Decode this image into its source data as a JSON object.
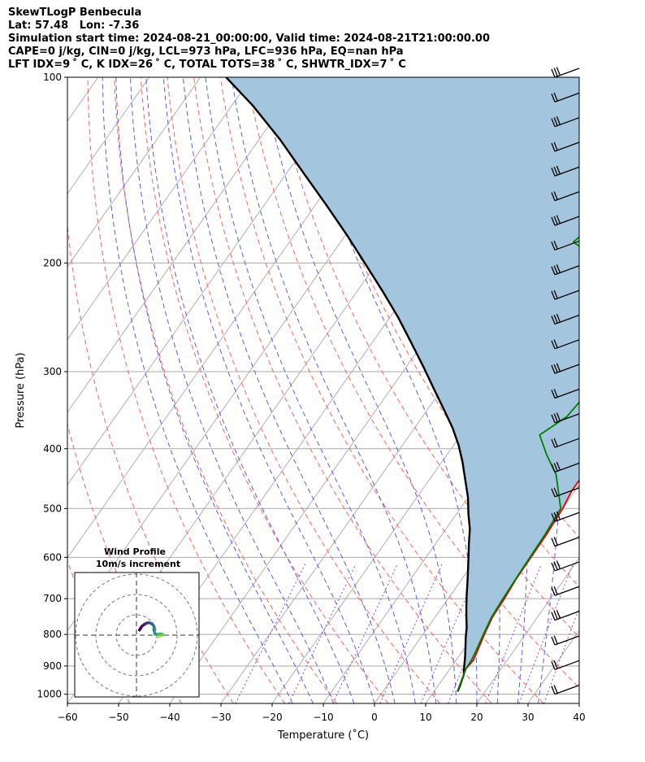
{
  "header": {
    "line1": "SkewTLogP Benbecula",
    "line2": "Lat: 57.48   Lon: -7.36",
    "line3": "Simulation start time: 2024-08-21_00:00:00, Valid time: 2024-08-21T21:00:00.00",
    "line4": "CAPE=0 j/kg, CIN=0 j/kg, LCL=973 hPa, LFC=936 hPa, EQ=nan hPa",
    "line5": "LFT IDX=9 ˚ C, K IDX=26 ˚ C, TOTAL TOTS=38 ˚ C, SHWTR_IDX=7 ˚ C"
  },
  "chart_data": [
    {
      "type": "line",
      "subtype": "skew-t log-p",
      "xlabel": "Temperature (˚C)",
      "ylabel": "Pressure (hPa)",
      "xlim": [
        -60,
        40
      ],
      "ylim": [
        1035,
        100
      ],
      "y_scale": "log",
      "x_ticks": [
        "−60",
        "−50",
        "−40",
        "−30",
        "−20",
        "−10",
        "0",
        "10",
        "20",
        "30",
        "40"
      ],
      "y_ticks": [
        "100",
        "200",
        "300",
        "400",
        "500",
        "600",
        "700",
        "800",
        "900",
        "1000"
      ],
      "grid": true,
      "colors": {
        "temperature": "#e00000",
        "dewpoint": "#008000",
        "parcel": "#000000",
        "shade": "#a3c6de",
        "dry_adiabat": "#ff6060",
        "moist_adiabat": "#5a5aff",
        "mixing_ratio": "#9a40c8",
        "isotherm": "#a8a8a8"
      },
      "series": [
        {
          "points": [
            [
              14.6,
              990
            ],
            [
              14.2,
              970
            ],
            [
              13.5,
              930
            ],
            [
              13.1,
              910
            ],
            [
              13.4,
              880
            ],
            [
              12.9,
              850
            ],
            [
              12.0,
              800
            ],
            [
              11.2,
              750
            ],
            [
              11.0,
              700
            ],
            [
              10.6,
              650
            ],
            [
              10.5,
              600
            ],
            [
              10.4,
              550
            ],
            [
              10.0,
              500
            ],
            [
              9.4,
              470
            ],
            [
              9.3,
              440
            ],
            [
              9.2,
              410
            ],
            [
              8.0,
              380
            ],
            [
              6.5,
              350
            ],
            [
              4.5,
              320
            ],
            [
              3.0,
              300
            ],
            [
              1.5,
              285
            ],
            [
              0.2,
              270
            ],
            [
              -0.5,
              255
            ],
            [
              -1.0,
              240
            ],
            [
              -0.3,
              225
            ],
            [
              0.9,
              210
            ],
            [
              2.2,
              200
            ],
            [
              3.4,
              190
            ],
            [
              4.8,
              180
            ],
            [
              6.5,
              170
            ],
            [
              8.5,
              158
            ],
            [
              10.2,
              148
            ],
            [
              11.8,
              138
            ],
            [
              13.3,
              128
            ],
            [
              14.8,
              119
            ],
            [
              16.0,
              111
            ],
            [
              17.5,
              105
            ],
            [
              18.7,
              100
            ]
          ]
        },
        {
          "points": [
            [
              14.6,
              990
            ],
            [
              14.2,
              970
            ],
            [
              13.5,
              930
            ],
            [
              13.1,
              910
            ],
            [
              13.0,
              880
            ],
            [
              12.6,
              850
            ],
            [
              11.8,
              800
            ],
            [
              11.0,
              750
            ],
            [
              10.7,
              700
            ],
            [
              10.5,
              650
            ],
            [
              10.3,
              600
            ],
            [
              10.1,
              550
            ],
            [
              9.6,
              500
            ],
            [
              4.0,
              440
            ],
            [
              -0.4,
              410
            ],
            [
              -4.6,
              380
            ],
            [
              -1.8,
              355
            ],
            [
              -1.3,
              335
            ],
            [
              -2.5,
              310
            ],
            [
              -4.5,
              290
            ],
            [
              -8.3,
              270
            ],
            [
              -6.3,
              255
            ],
            [
              -6.0,
              235
            ],
            [
              -5.8,
              220
            ],
            [
              -13.6,
              205
            ],
            [
              -18.5,
              195
            ],
            [
              -24.5,
              185
            ],
            [
              -22.5,
              170
            ],
            [
              -15.0,
              150
            ],
            [
              -8.0,
              130
            ],
            [
              -1.5,
              113
            ],
            [
              2.8,
              100
            ]
          ]
        },
        {
          "points": [
            [
              14.6,
              990
            ],
            [
              14.3,
              970
            ],
            [
              13.9,
              950
            ],
            [
              13.5,
              930
            ],
            [
              12.4,
              900
            ],
            [
              11.3,
              870
            ],
            [
              10.1,
              840
            ],
            [
              8.8,
              810
            ],
            [
              7.6,
              780
            ],
            [
              6.1,
              750
            ],
            [
              4.6,
              720
            ],
            [
              3.1,
              690
            ],
            [
              1.6,
              660
            ],
            [
              0.0,
              630
            ],
            [
              -1.7,
              600
            ],
            [
              -3.5,
              570
            ],
            [
              -5.3,
              540
            ],
            [
              -7.7,
              510
            ],
            [
              -10.0,
              480
            ],
            [
              -12.9,
              450
            ],
            [
              -16.0,
              420
            ],
            [
              -19.0,
              395
            ],
            [
              -22.6,
              370
            ],
            [
              -26.9,
              345
            ],
            [
              -31.6,
              320
            ],
            [
              -36.6,
              295
            ],
            [
              -42.2,
              270
            ],
            [
              -48.4,
              245
            ],
            [
              -55.1,
              222
            ],
            [
              -62.4,
              200
            ],
            [
              -69.8,
              180
            ],
            [
              -77.9,
              161
            ],
            [
              -86.7,
              143
            ],
            [
              -96.0,
              126
            ],
            [
              -106.0,
              111
            ],
            [
              -115.0,
              100
            ]
          ]
        }
      ]
    },
    {
      "type": "line",
      "subtype": "hodograph",
      "title": "Wind Profile",
      "subtitle": "10m/s increment",
      "colormap": "viridis",
      "series": [
        {
          "points": [
            [
              10.9,
              -0.7
            ],
            [
              11.1,
              -0.8
            ],
            [
              11.4,
              -0.6
            ],
            [
              12.1,
              -0.2
            ],
            [
              12.7,
              0.0
            ],
            [
              13.0,
              0.4
            ],
            [
              12.2,
              0.6
            ],
            [
              11.6,
              0.6
            ],
            [
              10.2,
              0.4
            ],
            [
              9.5,
              0.4
            ],
            [
              9.1,
              0.6
            ],
            [
              8.9,
              1.4
            ],
            [
              8.6,
              2.6
            ],
            [
              8.7,
              4.0
            ],
            [
              8.2,
              5.0
            ],
            [
              7.4,
              5.7
            ],
            [
              6.5,
              6.0
            ],
            [
              5.8,
              6.1
            ],
            [
              5.1,
              5.9
            ],
            [
              4.4,
              5.6
            ],
            [
              3.6,
              5.1
            ],
            [
              2.6,
              4.3
            ],
            [
              1.9,
              3.2
            ],
            [
              1.5,
              2.5
            ]
          ]
        }
      ]
    }
  ]
}
